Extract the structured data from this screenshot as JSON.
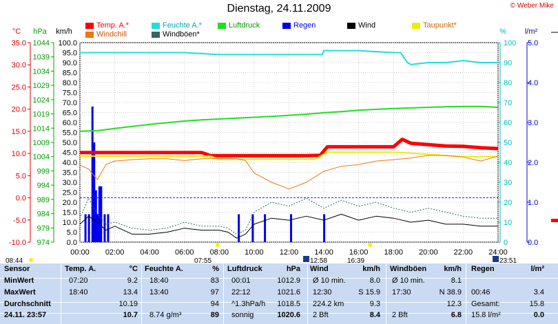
{
  "title": "Dienstag, 24.11.2009",
  "credit": "© Weber Mike",
  "legend": [
    {
      "label": "Temp. A.*",
      "color": "#ff0000"
    },
    {
      "label": "Feuchte A.*",
      "color": "#22dddd"
    },
    {
      "label": "Luftdruck",
      "color": "#22dd22"
    },
    {
      "label": "Regen",
      "color": "#0000ee"
    },
    {
      "label": "Wind",
      "color": "#000000"
    },
    {
      "label": "Taupunkt*",
      "color": "#eeee00"
    },
    {
      "label": "Windchill",
      "color": "#ee7711"
    },
    {
      "label": "Windböen*",
      "color": "#336666"
    }
  ],
  "axes": {
    "temp_unit": "°C",
    "pressure_unit": "hPa",
    "wind_unit": "km/h",
    "humidity_unit": "%",
    "rain_unit": "l/m²",
    "temp_ticks": [
      "35.0",
      "30.0",
      "25.0",
      "20.0",
      "15.0",
      "10.0",
      "5.0",
      "0.0",
      "-5.0",
      "-10.0"
    ],
    "pressure_ticks": [
      "1044",
      "1039",
      "1034",
      "1029",
      "1024",
      "1019",
      "1014",
      "1009",
      "1004",
      "999",
      "994",
      "989",
      "984",
      "979",
      "974"
    ],
    "wind_ticks": [
      "100.0",
      "95.0",
      "90.0",
      "85.0",
      "80.0",
      "75.0",
      "70.0",
      "65.0",
      "60.0",
      "55.0",
      "50.0",
      "45.0",
      "40.0",
      "35.0",
      "30.0",
      "25.0",
      "20.0",
      "15.0",
      "10.0",
      "5.0",
      "0.0"
    ],
    "humidity_ticks": [
      "100",
      "90",
      "80",
      "70",
      "60",
      "50",
      "40",
      "30",
      "20",
      "10",
      "0"
    ],
    "rain_ticks": [
      "5.0",
      "4.0",
      "3.0",
      "2.0",
      "1.0",
      "0.0"
    ],
    "time_ticks": [
      "00:00",
      "02:00",
      "04:00",
      "06:00",
      "08:00",
      "10:00",
      "12:00",
      "14:00",
      "16:00",
      "18:00",
      "20:00",
      "22:00",
      "24:00"
    ]
  },
  "sun_events": {
    "sunrise": "08:44",
    "dawn": "07:55",
    "noon": "12:58",
    "dusk": "16:39",
    "sunset": "23:51"
  },
  "chart_data": {
    "type": "line",
    "x_unit": "hours",
    "x_range": [
      0,
      24
    ],
    "series": [
      {
        "name": "Temp. A.*",
        "axis": "°C",
        "color": "#ff0000",
        "x": [
          0,
          1,
          2,
          3,
          4,
          5,
          6,
          7,
          7.5,
          8,
          9,
          10,
          11,
          12,
          13,
          13.8,
          14.2,
          15,
          16,
          17,
          18,
          18.5,
          19,
          20,
          21,
          22,
          23,
          24
        ],
        "y": [
          10.2,
          10.2,
          10.2,
          10.2,
          10.2,
          10.2,
          10.2,
          10.2,
          9.5,
          9.5,
          9.5,
          9.5,
          9.5,
          9.5,
          9.5,
          9.6,
          11.5,
          11.5,
          11.5,
          11.5,
          11.5,
          13.2,
          12.3,
          12,
          11.7,
          11.6,
          11.3,
          11.1
        ]
      },
      {
        "name": "Taupunkt*",
        "axis": "°C",
        "color": "#eeee00",
        "x": [
          0,
          2,
          4,
          6,
          7.5,
          8,
          10,
          12,
          13.5,
          14.2,
          16,
          18,
          20,
          22,
          24
        ],
        "y": [
          9.4,
          9.4,
          9.4,
          9.4,
          9.4,
          8.7,
          8.7,
          8.7,
          8.7,
          10.3,
          10.3,
          10.3,
          9.8,
          9.3,
          9.3
        ]
      },
      {
        "name": "Windchill",
        "axis": "°C",
        "color": "#ee7711",
        "x": [
          0,
          0.5,
          1,
          1.5,
          2,
          3,
          4,
          5,
          6,
          7,
          8,
          9,
          9.5,
          10,
          11,
          12,
          13,
          14,
          15,
          16,
          17,
          18,
          19,
          20,
          21,
          22,
          23,
          24
        ],
        "y": [
          7.4,
          6.5,
          4.1,
          7.5,
          8.3,
          8.6,
          8.8,
          8.8,
          8.4,
          8.8,
          8.9,
          8.8,
          8.4,
          5.6,
          3.5,
          2,
          3.5,
          6,
          7.1,
          7.5,
          8.3,
          8.6,
          9,
          9.6,
          9.5,
          9.2,
          8.3,
          9.4
        ]
      },
      {
        "name": "Feuchte A.*",
        "axis": "%",
        "color": "#22dddd",
        "x": [
          0,
          2,
          4,
          6,
          8,
          10,
          12,
          13.9,
          14,
          16,
          18,
          18.4,
          18.8,
          19,
          20,
          21,
          22,
          23,
          24
        ],
        "y": [
          95,
          95,
          95,
          95,
          94,
          94,
          94,
          94,
          96,
          96,
          95,
          95,
          90,
          89,
          90,
          90,
          91,
          90,
          90
        ]
      },
      {
        "name": "Luftdruck",
        "axis": "hPa",
        "color": "#22dd22",
        "x": [
          0,
          1,
          2,
          3,
          4,
          5,
          6,
          7,
          8,
          9,
          10,
          11,
          12,
          13,
          14,
          15,
          16,
          17,
          18,
          19,
          20,
          21,
          22,
          23,
          24
        ],
        "y": [
          1012.9,
          1013.1,
          1013.9,
          1014.6,
          1015.3,
          1015.9,
          1016.5,
          1016.9,
          1017.2,
          1017.5,
          1017.8,
          1018.1,
          1018.5,
          1018.9,
          1019.4,
          1019.8,
          1020.3,
          1020.6,
          1020.9,
          1021.1,
          1021.3,
          1021.5,
          1021.6,
          1021.6,
          1021.3
        ]
      },
      {
        "name": "Wind",
        "axis": "km/h",
        "color": "#000000",
        "x": [
          0,
          0.5,
          1,
          1.5,
          2,
          3,
          4,
          5,
          6,
          7,
          8,
          8.5,
          9,
          9.5,
          10,
          11,
          12,
          13,
          14,
          15,
          16,
          17,
          18,
          19,
          20,
          21,
          22,
          23,
          24
        ],
        "y": [
          9,
          13,
          10,
          6,
          8,
          4,
          4,
          5,
          7,
          6,
          6,
          5,
          2,
          4,
          9,
          12,
          11,
          13,
          11,
          14,
          11,
          13,
          12,
          10,
          11,
          9,
          9,
          8,
          8
        ]
      },
      {
        "name": "Windböen*",
        "axis": "km/h",
        "color": "#336666",
        "x": [
          0,
          0.5,
          1,
          1.5,
          2,
          3,
          4,
          5,
          6,
          7,
          8,
          8.5,
          9,
          9.5,
          10,
          11,
          12,
          13,
          14,
          15,
          16,
          17,
          18,
          19,
          20,
          21,
          22,
          23,
          24
        ],
        "y": [
          12,
          22,
          14,
          9,
          10,
          7,
          6,
          7,
          10,
          8,
          8,
          7,
          4,
          6,
          15,
          20,
          18,
          22,
          17,
          21,
          18,
          20,
          17,
          15,
          17,
          15,
          13,
          12,
          12
        ]
      }
    ],
    "rain_bars": {
      "name": "Regen",
      "axis": "l/m²",
      "color": "#0000ee",
      "x": [
        0.3,
        0.5,
        0.7,
        0.8,
        0.9,
        1.0,
        1.1,
        1.2,
        1.4,
        1.6,
        9.1,
        9.9,
        10.6,
        12.1,
        14.0
      ],
      "y": [
        0.7,
        0.7,
        3.4,
        2.5,
        1.3,
        0.7,
        1.4,
        1.4,
        0.7,
        0.7,
        0.7,
        0.7,
        0.7,
        0.7,
        0.7
      ]
    },
    "hlines": [
      {
        "name": "0 °C",
        "axis": "°C",
        "value": 0,
        "color": "#2222ee"
      }
    ]
  },
  "table": {
    "headers": [
      {
        "text": "Sensor"
      },
      {
        "text": "Temp. A.",
        "unit": "°C"
      },
      {
        "text": "Feuchte A.",
        "unit": "%"
      },
      {
        "text": "Luftdruck",
        "unit": "hPa"
      },
      {
        "text": "Wind",
        "unit": "km/h"
      },
      {
        "text": "Windböen",
        "unit": "km/h"
      },
      {
        "text": "Regen",
        "unit": "l/m²"
      }
    ],
    "rows": [
      {
        "label": "MinWert",
        "cells": [
          [
            "07:20",
            "9.2"
          ],
          [
            "18:40",
            "83"
          ],
          [
            "00:01",
            "1012.9"
          ],
          [
            "Ø 10 min.",
            "8.0"
          ],
          [
            "Ø 10 min.",
            "8.1"
          ],
          [
            "",
            ""
          ]
        ]
      },
      {
        "label": "MaxWert",
        "cells": [
          [
            "18:40",
            "13.4"
          ],
          [
            "13:40",
            "97"
          ],
          [
            "22:12",
            "1021.6"
          ],
          [
            "12:30",
            "S 15.9"
          ],
          [
            "17:30",
            "N 38.9"
          ],
          [
            "00:46",
            "3.4"
          ]
        ]
      },
      {
        "label": "Durchschnitt",
        "cells": [
          [
            "",
            "10.19"
          ],
          [
            "",
            "94"
          ],
          [
            "^1.3hPa/h",
            "1018.5"
          ],
          [
            "224.2 km",
            "9.3"
          ],
          [
            "",
            "12.3"
          ],
          [
            "Gesamt:",
            "15.8"
          ]
        ]
      },
      {
        "label": "24.11. 23:57",
        "cells": [
          [
            "",
            "10.7"
          ],
          [
            "8.74 g/m³",
            "89"
          ],
          [
            "sonnig",
            "1020.6"
          ],
          [
            "2 Bft",
            "8.4"
          ],
          [
            "2 Bft",
            "6.8"
          ],
          [
            "15.8 l/m²",
            "0.0"
          ]
        ]
      }
    ]
  }
}
